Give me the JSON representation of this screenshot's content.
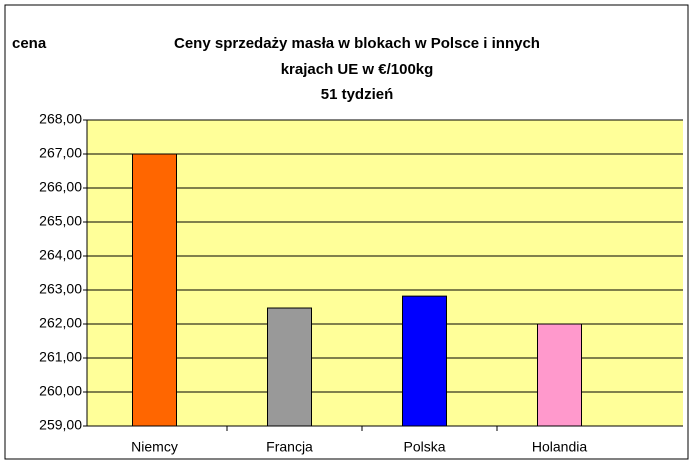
{
  "chart_data": {
    "type": "bar",
    "title": [
      "Ceny sprzedaży masła w blokach w Polsce i  innych",
      "krajach UE w €/100kg",
      "51 tydzień"
    ],
    "y_label": "cena",
    "categories": [
      "Niemcy",
      "Francja",
      "Polska",
      "Holandia"
    ],
    "values": [
      267.0,
      262.47,
      262.82,
      262.0
    ],
    "colors": [
      "#ff6600",
      "#999999",
      "#0000ff",
      "#ff99cc"
    ],
    "ylim": [
      259,
      268
    ],
    "yticks": [
      {
        "value": 259,
        "label": "259,00"
      },
      {
        "value": 260,
        "label": "260,00"
      },
      {
        "value": 261,
        "label": "261,00"
      },
      {
        "value": 262,
        "label": "262,00"
      },
      {
        "value": 263,
        "label": "263,00"
      },
      {
        "value": 264,
        "label": "264,00"
      },
      {
        "value": 265,
        "label": "265,00"
      },
      {
        "value": 266,
        "label": "266,00"
      },
      {
        "value": 267,
        "label": "267,00"
      },
      {
        "value": 268,
        "label": "268,00"
      }
    ],
    "grid": true
  }
}
